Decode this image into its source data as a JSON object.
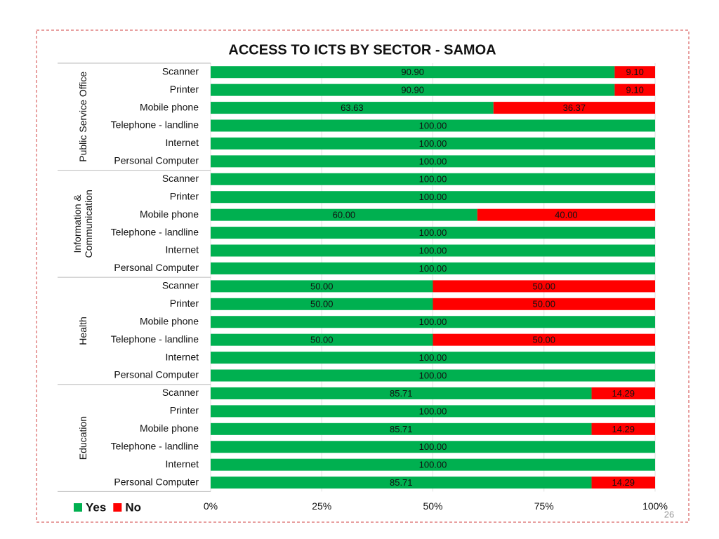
{
  "chart_data": {
    "type": "stacked-bar-horizontal",
    "title": "ACCESS TO ICTS BY SECTOR - SAMOA",
    "groups": [
      {
        "name": "Public Service Office",
        "categories": [
          "Scanner",
          "Printer",
          "Mobile phone",
          "Telephone - landline",
          "Internet",
          "Personal Computer"
        ]
      },
      {
        "name": "Information & Communication",
        "categories": [
          "Scanner",
          "Printer",
          "Mobile phone",
          "Telephone - landline",
          "Internet",
          "Personal Computer"
        ]
      },
      {
        "name": "Health",
        "categories": [
          "Scanner",
          "Printer",
          "Mobile phone",
          "Telephone - landline",
          "Internet",
          "Personal Computer"
        ]
      },
      {
        "name": "Education",
        "categories": [
          "Scanner",
          "Printer",
          "Mobile phone",
          "Telephone - landline",
          "Internet",
          "Personal Computer"
        ]
      }
    ],
    "series": [
      {
        "name": "Yes",
        "color": "#00b050",
        "values": [
          90.9,
          90.9,
          63.63,
          100,
          100,
          100,
          100,
          100,
          60,
          100,
          100,
          100,
          50,
          50,
          100,
          50,
          100,
          100,
          85.71,
          100,
          85.71,
          100,
          100,
          85.71
        ],
        "value_labels": [
          "90.90",
          "90.90",
          "63.63",
          "100.00",
          "100.00",
          "100.00",
          "100.00",
          "100.00",
          "60.00",
          "100.00",
          "100.00",
          "100.00",
          "50.00",
          "50.00",
          "100.00",
          "50.00",
          "100.00",
          "100.00",
          "85.71",
          "100.00",
          "85.71",
          "100.00",
          "100.00",
          "85.71"
        ]
      },
      {
        "name": "No",
        "color": "#ff0000",
        "values": [
          9.1,
          9.1,
          36.37,
          0,
          0,
          0,
          0,
          0,
          40,
          0,
          0,
          0,
          50,
          50,
          0,
          50,
          0,
          0,
          14.29,
          0,
          14.29,
          0,
          0,
          14.29
        ],
        "value_labels": [
          "9.10",
          "9.10",
          "36.37",
          null,
          null,
          null,
          null,
          null,
          "40.00",
          null,
          null,
          null,
          "50.00",
          "50.00",
          null,
          "50.00",
          null,
          null,
          "14.29",
          null,
          "14.29",
          null,
          null,
          "14.29"
        ]
      }
    ],
    "xlim": [
      0,
      100
    ],
    "xticks": [
      {
        "value": 0,
        "label": "0%"
      },
      {
        "value": 25,
        "label": "25%"
      },
      {
        "value": 50,
        "label": "50%"
      },
      {
        "value": 75,
        "label": "75%"
      },
      {
        "value": 100,
        "label": "100%"
      }
    ],
    "grid": true,
    "legend": "bottom-left"
  },
  "page_number": "26"
}
